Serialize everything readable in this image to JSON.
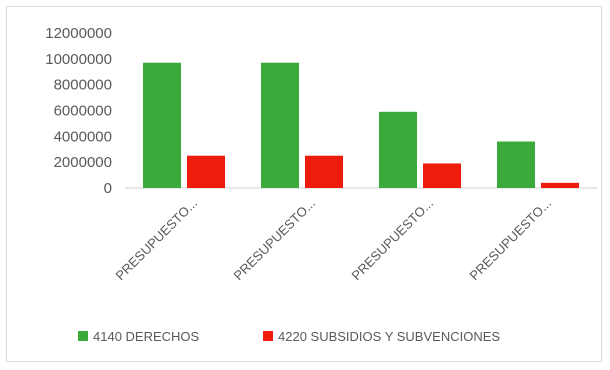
{
  "chart_data": {
    "type": "bar",
    "categories": [
      "PRESUPUESTO...",
      "PRESUPUESTO...",
      "PRESUPUESTO...",
      "PRESUPUESTO..."
    ],
    "series": [
      {
        "name": "4140 DERECHOS",
        "values": [
          9700000,
          9700000,
          5900000,
          3600000
        ],
        "color": "#3aaa3a"
      },
      {
        "name": "4220 SUBSIDIOS Y SUBVENCIONES",
        "values": [
          2500000,
          2500000,
          1900000,
          400000
        ],
        "color": "#ee1c0c"
      }
    ],
    "yticks": [
      0,
      2000000,
      4000000,
      6000000,
      8000000,
      10000000,
      12000000
    ],
    "ylim": [
      0,
      12000000
    ],
    "grid": false,
    "legend": "bottom"
  }
}
